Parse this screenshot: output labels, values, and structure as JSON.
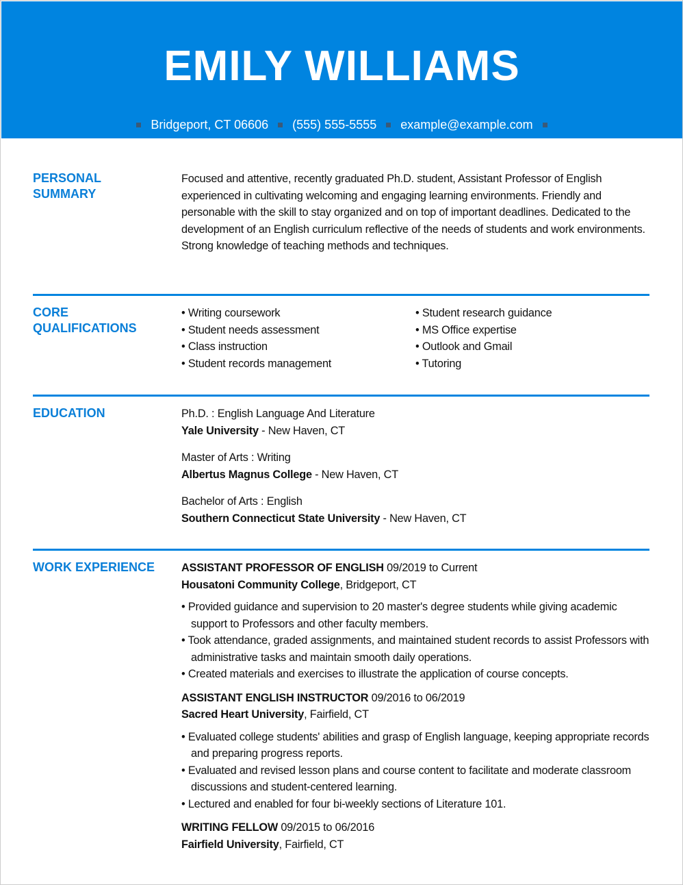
{
  "header": {
    "name": "EMILY WILLIAMS",
    "location": "Bridgeport, CT 06606",
    "phone": "(555) 555-5555",
    "email": "example@example.com",
    "accent": "#0084e0"
  },
  "summary": {
    "label_1": "PERSONAL",
    "label_2": "SUMMARY",
    "text": "Focused and attentive, recently graduated Ph.D. student, Assistant Professor of English experienced in cultivating welcoming and engaging learning environments. Friendly and personable with the skill to stay organized and on top of important deadlines. Dedicated to the development of an English curriculum reflective of the needs of students and work environments. Strong knowledge of teaching methods and techniques."
  },
  "qualifications": {
    "label_1": "CORE",
    "label_2": "QUALIFICATIONS",
    "col1": [
      "Writing coursework",
      "Student needs assessment",
      "Class instruction",
      "Student records management"
    ],
    "col2": [
      "Student research guidance",
      "MS Office expertise",
      "Outlook and Gmail",
      "Tutoring"
    ]
  },
  "education": {
    "label": "EDUCATION",
    "items": [
      {
        "degree": "Ph.D. : English Language And Literature",
        "school": "Yale University",
        "location": " - New Haven, CT"
      },
      {
        "degree": "Master of Arts : Writing",
        "school": "Albertus Magnus College",
        "location": " - New Haven, CT"
      },
      {
        "degree": "Bachelor of Arts : English",
        "school": "Southern Connecticut State University",
        "location": " - New Haven, CT"
      }
    ]
  },
  "experience": {
    "label": "WORK EXPERIENCE",
    "jobs": [
      {
        "title": "ASSISTANT PROFESSOR OF ENGLISH",
        "dates": " 09/2019 to Current",
        "employer": "Housatoni Community College",
        "location": ", Bridgeport, CT",
        "bullets": [
          "Provided guidance and supervision to 20 master's degree students while giving academic support to Professors and other faculty members.",
          "Took attendance, graded assignments, and maintained student records to assist Professors with administrative tasks and maintain smooth daily operations.",
          "Created materials and exercises to illustrate the application of course concepts."
        ]
      },
      {
        "title": "ASSISTANT ENGLISH INSTRUCTOR",
        "dates": " 09/2016 to 06/2019",
        "employer": "Sacred Heart University",
        "location": ", Fairfield, CT",
        "bullets": [
          "Evaluated college students' abilities and grasp of English language, keeping appropriate records and preparing progress reports.",
          "Evaluated and revised lesson plans and course content to facilitate and moderate classroom discussions and student-centered learning.",
          "Lectured and enabled for four bi-weekly sections of Literature 101."
        ]
      },
      {
        "title": "WRITING FELLOW",
        "dates": " 09/2015 to 06/2016",
        "employer": "Fairfield University",
        "location": ", Fairfield, CT",
        "bullets": []
      }
    ]
  }
}
